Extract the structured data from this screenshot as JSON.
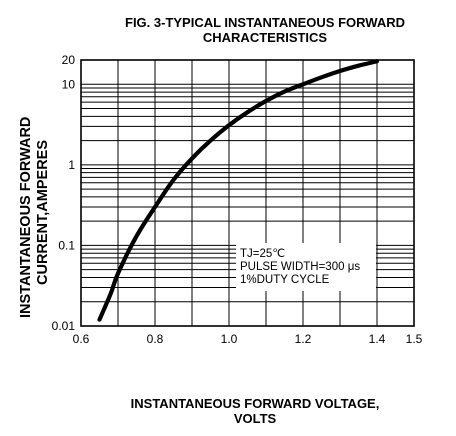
{
  "chart_data": {
    "type": "line",
    "title_line1": "FIG. 3-TYPICAL INSTANTANEOUS FORWARD",
    "title_line2": "CHARACTERISTICS",
    "xlabel_line1": "INSTANTANEOUS FORWARD VOLTAGE,",
    "xlabel_line2": "VOLTS",
    "ylabel_line1": "INSTANTANEOUS FORWARD",
    "ylabel_line2": "CURRENT,AMPERES",
    "x_scale": "linear",
    "y_scale": "log",
    "xlim": [
      0.6,
      1.5
    ],
    "ylim": [
      0.01,
      20
    ],
    "x_ticks": [
      0.6,
      0.8,
      1.0,
      1.2,
      1.4,
      1.5
    ],
    "x_tick_labels": [
      "0.6",
      "0.8",
      "1.0",
      "1.2",
      "1.4",
      "1.5"
    ],
    "y_ticks": [
      0.01,
      0.1,
      1,
      10,
      20
    ],
    "y_tick_labels": [
      "0.01",
      "0.1",
      "1",
      "10",
      "20"
    ],
    "grid": true,
    "annotation": [
      "TJ=25℃",
      "PULSE WIDTH=300 μs",
      "1%DUTY CYCLE"
    ],
    "series": [
      {
        "x": [
          0.65,
          0.68,
          0.7,
          0.75,
          0.8,
          0.85,
          0.9,
          0.95,
          1.0,
          1.05,
          1.1,
          1.15,
          1.2,
          1.25,
          1.3,
          1.35,
          1.4
        ],
        "y": [
          0.012,
          0.025,
          0.045,
          0.13,
          0.3,
          0.65,
          1.2,
          2.0,
          3.1,
          4.5,
          6.2,
          8.1,
          10.0,
          12.2,
          14.6,
          17.0,
          19.3
        ]
      }
    ]
  }
}
